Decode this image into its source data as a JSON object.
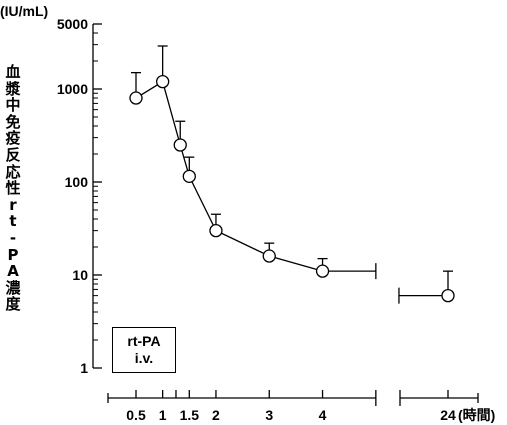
{
  "chart_data": {
    "type": "line",
    "unit_label": "(IU/mL)",
    "ylabel": "血漿中免疫反応性rt-PA濃度",
    "xlabel": "(時間)",
    "yscale": "log",
    "ylim": [
      1,
      5000
    ],
    "y_ticks": [
      1,
      10,
      100,
      1000,
      5000
    ],
    "y_tick_labels": [
      "1",
      "10",
      "100",
      "1000",
      "5000"
    ],
    "x_tick_labels": [
      "0.5",
      "1",
      "1.5",
      "2",
      "3",
      "4",
      "24"
    ],
    "x_unit": "時間",
    "grid": false,
    "series": [
      {
        "x": [
          0.5,
          1,
          1.33,
          1.5,
          2,
          3,
          4
        ],
        "y": [
          800,
          1200,
          250,
          115,
          30,
          16,
          11
        ],
        "err": [
          700,
          1700,
          200,
          70,
          15,
          6,
          4
        ],
        "infusion_bar_end": 5
      },
      {
        "x": [
          24
        ],
        "y": [
          6
        ],
        "err": [
          5
        ],
        "range": [
          22.5,
          24
        ]
      }
    ],
    "annotation": [
      "rt-PA",
      "i.v."
    ]
  }
}
